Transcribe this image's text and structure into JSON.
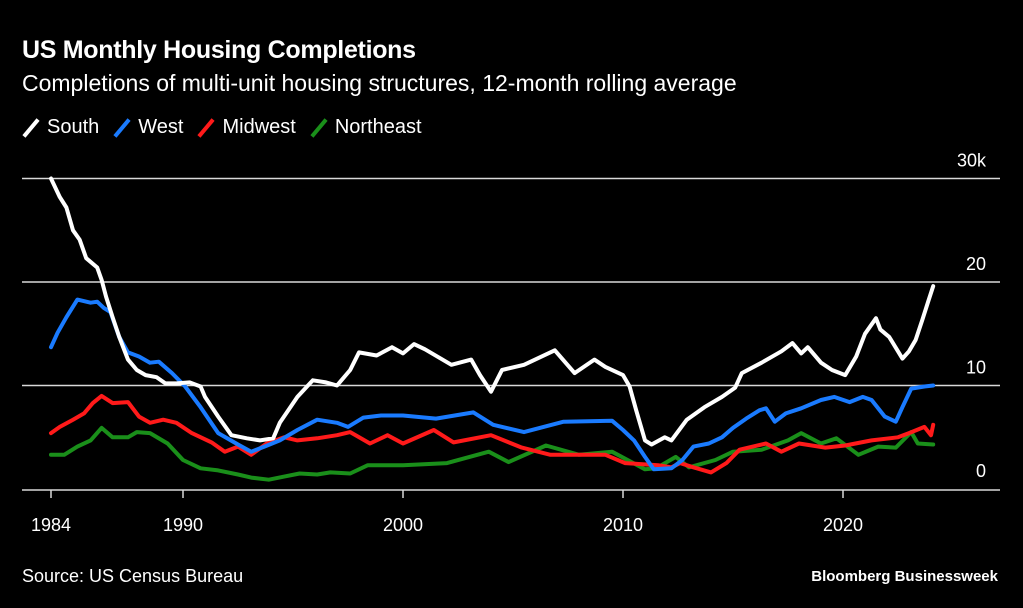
{
  "header": {
    "title": "US Monthly Housing Completions",
    "subtitle": "Completions of multi-unit housing structures, 12-month rolling average"
  },
  "footer": {
    "source": "Source: US Census Bureau",
    "brand": "Bloomberg Businessweek"
  },
  "chart_data": {
    "type": "line",
    "title": "US Monthly Housing Completions",
    "subtitle": "Completions of multi-unit housing structures, 12-month rolling average",
    "xlabel": "",
    "ylabel": "",
    "xlim": [
      1984,
      2024.2
    ],
    "ylim": [
      0,
      30
    ],
    "grid": true,
    "legend_position": "top-left",
    "x_ticks": [
      1984,
      1990,
      2000,
      2010,
      2020
    ],
    "x_tick_labels": [
      "1984",
      "1990",
      "2000",
      "2010",
      "2020"
    ],
    "y_ticks": [
      0,
      10,
      20,
      30
    ],
    "y_tick_labels": [
      "0",
      "10",
      "20",
      "30k"
    ],
    "series": [
      {
        "name": "South",
        "color": "#ffffff",
        "points": [
          [
            1984.0,
            30.0
          ],
          [
            1984.4,
            28.2
          ],
          [
            1984.7,
            27.2
          ],
          [
            1985.0,
            25.0
          ],
          [
            1985.3,
            24.1
          ],
          [
            1985.6,
            22.3
          ],
          [
            1986.1,
            21.4
          ],
          [
            1986.3,
            20.2
          ],
          [
            1986.5,
            18.6
          ],
          [
            1986.8,
            16.6
          ],
          [
            1987.1,
            14.7
          ],
          [
            1987.5,
            12.5
          ],
          [
            1987.9,
            11.5
          ],
          [
            1988.3,
            11.0
          ],
          [
            1988.8,
            10.8
          ],
          [
            1989.2,
            10.2
          ],
          [
            1989.7,
            10.2
          ],
          [
            1990.3,
            10.3
          ],
          [
            1990.8,
            9.9
          ],
          [
            1991.0,
            8.9
          ],
          [
            1991.6,
            7.0
          ],
          [
            1992.2,
            5.2
          ],
          [
            1992.9,
            4.9
          ],
          [
            1993.5,
            4.7
          ],
          [
            1994.1,
            4.9
          ],
          [
            1994.4,
            6.4
          ],
          [
            1995.2,
            8.9
          ],
          [
            1995.9,
            10.5
          ],
          [
            1996.5,
            10.3
          ],
          [
            1997.0,
            10.0
          ],
          [
            1997.6,
            11.5
          ],
          [
            1998.0,
            13.2
          ],
          [
            1998.8,
            12.9
          ],
          [
            1999.5,
            13.7
          ],
          [
            2000.0,
            13.1
          ],
          [
            2000.5,
            14.0
          ],
          [
            2001.0,
            13.5
          ],
          [
            2002.2,
            12.0
          ],
          [
            2003.1,
            12.5
          ],
          [
            2003.5,
            11.0
          ],
          [
            2004.0,
            9.4
          ],
          [
            2004.5,
            11.5
          ],
          [
            2005.5,
            12.0
          ],
          [
            2006.9,
            13.4
          ],
          [
            2007.8,
            11.2
          ],
          [
            2008.7,
            12.5
          ],
          [
            2009.2,
            11.8
          ],
          [
            2010.0,
            11.0
          ],
          [
            2010.3,
            9.9
          ],
          [
            2010.6,
            7.6
          ],
          [
            2011.0,
            4.7
          ],
          [
            2011.3,
            4.3
          ],
          [
            2011.9,
            5.0
          ],
          [
            2012.2,
            4.7
          ],
          [
            2012.9,
            6.7
          ],
          [
            2013.7,
            7.9
          ],
          [
            2014.5,
            8.9
          ],
          [
            2015.1,
            9.8
          ],
          [
            2015.4,
            11.2
          ],
          [
            2016.3,
            12.2
          ],
          [
            2017.2,
            13.3
          ],
          [
            2017.7,
            14.1
          ],
          [
            2018.1,
            13.1
          ],
          [
            2018.4,
            13.7
          ],
          [
            2019.0,
            12.2
          ],
          [
            2019.5,
            11.5
          ],
          [
            2020.1,
            11.0
          ],
          [
            2020.6,
            12.8
          ],
          [
            2021.0,
            15.0
          ],
          [
            2021.5,
            16.5
          ],
          [
            2021.7,
            15.4
          ],
          [
            2022.1,
            14.7
          ],
          [
            2022.7,
            12.6
          ],
          [
            2023.0,
            13.3
          ],
          [
            2023.3,
            14.4
          ],
          [
            2023.6,
            16.3
          ],
          [
            2023.9,
            18.3
          ],
          [
            2024.1,
            19.6
          ]
        ]
      },
      {
        "name": "West",
        "color": "#1a7bff",
        "points": [
          [
            1984.0,
            13.7
          ],
          [
            1984.3,
            15.1
          ],
          [
            1984.7,
            16.6
          ],
          [
            1985.2,
            18.3
          ],
          [
            1985.8,
            18.0
          ],
          [
            1986.1,
            18.1
          ],
          [
            1986.4,
            17.5
          ],
          [
            1986.7,
            17.1
          ],
          [
            1987.1,
            14.7
          ],
          [
            1987.5,
            13.2
          ],
          [
            1988.0,
            12.8
          ],
          [
            1988.5,
            12.2
          ],
          [
            1988.9,
            12.3
          ],
          [
            1989.5,
            11.2
          ],
          [
            1990.1,
            9.9
          ],
          [
            1990.8,
            7.9
          ],
          [
            1991.6,
            5.4
          ],
          [
            1992.5,
            4.3
          ],
          [
            1993.1,
            3.6
          ],
          [
            1993.7,
            4.1
          ],
          [
            1994.4,
            4.7
          ],
          [
            1995.2,
            5.7
          ],
          [
            1996.1,
            6.7
          ],
          [
            1997.0,
            6.4
          ],
          [
            1997.5,
            6.0
          ],
          [
            1998.2,
            6.9
          ],
          [
            1999.0,
            7.1
          ],
          [
            2000.0,
            7.1
          ],
          [
            2001.5,
            6.8
          ],
          [
            2003.2,
            7.4
          ],
          [
            2004.1,
            6.2
          ],
          [
            2005.5,
            5.5
          ],
          [
            2007.3,
            6.5
          ],
          [
            2009.5,
            6.6
          ],
          [
            2010.0,
            5.7
          ],
          [
            2010.5,
            4.7
          ],
          [
            2011.0,
            3.1
          ],
          [
            2011.4,
            1.9
          ],
          [
            2012.2,
            2.0
          ],
          [
            2012.7,
            2.8
          ],
          [
            2013.2,
            4.1
          ],
          [
            2013.9,
            4.4
          ],
          [
            2014.5,
            5.0
          ],
          [
            2015.0,
            5.9
          ],
          [
            2015.6,
            6.8
          ],
          [
            2016.2,
            7.6
          ],
          [
            2016.5,
            7.8
          ],
          [
            2016.9,
            6.5
          ],
          [
            2017.4,
            7.3
          ],
          [
            2018.1,
            7.8
          ],
          [
            2019.0,
            8.6
          ],
          [
            2019.6,
            8.9
          ],
          [
            2020.3,
            8.4
          ],
          [
            2020.9,
            8.9
          ],
          [
            2021.3,
            8.6
          ],
          [
            2021.9,
            7.0
          ],
          [
            2022.4,
            6.5
          ],
          [
            2022.7,
            7.9
          ],
          [
            2023.1,
            9.7
          ],
          [
            2023.7,
            9.9
          ],
          [
            2024.1,
            10.0
          ]
        ]
      },
      {
        "name": "Midwest",
        "color": "#ff1a1a",
        "points": [
          [
            1984.0,
            5.4
          ],
          [
            1984.4,
            6.0
          ],
          [
            1985.0,
            6.7
          ],
          [
            1985.5,
            7.3
          ],
          [
            1985.9,
            8.3
          ],
          [
            1986.3,
            9.0
          ],
          [
            1986.8,
            8.3
          ],
          [
            1987.5,
            8.4
          ],
          [
            1988.0,
            7.0
          ],
          [
            1988.5,
            6.4
          ],
          [
            1989.1,
            6.7
          ],
          [
            1989.7,
            6.4
          ],
          [
            1990.4,
            5.4
          ],
          [
            1991.3,
            4.5
          ],
          [
            1991.9,
            3.6
          ],
          [
            1992.5,
            4.1
          ],
          [
            1993.1,
            3.3
          ],
          [
            1993.8,
            4.4
          ],
          [
            1994.6,
            5.0
          ],
          [
            1995.2,
            4.7
          ],
          [
            1996.1,
            4.9
          ],
          [
            1997.0,
            5.2
          ],
          [
            1997.6,
            5.5
          ],
          [
            1998.5,
            4.4
          ],
          [
            1999.3,
            5.2
          ],
          [
            2000.0,
            4.4
          ],
          [
            2001.4,
            5.7
          ],
          [
            2002.3,
            4.5
          ],
          [
            2004.0,
            5.2
          ],
          [
            2005.4,
            4.0
          ],
          [
            2006.7,
            3.3
          ],
          [
            2009.2,
            3.3
          ],
          [
            2010.1,
            2.5
          ],
          [
            2011.6,
            2.3
          ],
          [
            2012.2,
            2.1
          ],
          [
            2012.6,
            2.5
          ],
          [
            2013.2,
            2.1
          ],
          [
            2014.0,
            1.6
          ],
          [
            2014.7,
            2.5
          ],
          [
            2015.3,
            3.8
          ],
          [
            2016.5,
            4.4
          ],
          [
            2017.2,
            3.6
          ],
          [
            2018.0,
            4.4
          ],
          [
            2019.2,
            4.0
          ],
          [
            2020.1,
            4.2
          ],
          [
            2021.3,
            4.7
          ],
          [
            2022.5,
            5.0
          ],
          [
            2023.0,
            5.4
          ],
          [
            2023.7,
            6.0
          ],
          [
            2024.0,
            5.2
          ],
          [
            2024.1,
            6.2
          ]
        ]
      },
      {
        "name": "Northeast",
        "color": "#1a8f1a",
        "points": [
          [
            1984.0,
            3.3
          ],
          [
            1984.6,
            3.3
          ],
          [
            1985.2,
            4.1
          ],
          [
            1985.8,
            4.7
          ],
          [
            1986.3,
            5.9
          ],
          [
            1986.8,
            5.0
          ],
          [
            1987.5,
            5.0
          ],
          [
            1987.9,
            5.5
          ],
          [
            1988.5,
            5.4
          ],
          [
            1989.3,
            4.4
          ],
          [
            1990.0,
            2.8
          ],
          [
            1990.8,
            2.0
          ],
          [
            1991.6,
            1.8
          ],
          [
            1992.5,
            1.4
          ],
          [
            1993.1,
            1.1
          ],
          [
            1993.9,
            0.9
          ],
          [
            1994.6,
            1.2
          ],
          [
            1995.3,
            1.5
          ],
          [
            1996.1,
            1.4
          ],
          [
            1996.7,
            1.6
          ],
          [
            1997.6,
            1.5
          ],
          [
            1998.4,
            2.3
          ],
          [
            1999.3,
            2.3
          ],
          [
            2000.0,
            2.3
          ],
          [
            2002.0,
            2.5
          ],
          [
            2003.9,
            3.6
          ],
          [
            2004.8,
            2.6
          ],
          [
            2006.5,
            4.2
          ],
          [
            2008.0,
            3.3
          ],
          [
            2009.5,
            3.6
          ],
          [
            2011.0,
            1.9
          ],
          [
            2011.5,
            2.0
          ],
          [
            2012.4,
            3.1
          ],
          [
            2013.0,
            2.1
          ],
          [
            2014.2,
            2.8
          ],
          [
            2015.0,
            3.6
          ],
          [
            2016.3,
            3.8
          ],
          [
            2017.5,
            4.7
          ],
          [
            2018.1,
            5.4
          ],
          [
            2019.0,
            4.4
          ],
          [
            2019.7,
            4.9
          ],
          [
            2020.7,
            3.3
          ],
          [
            2021.6,
            4.1
          ],
          [
            2022.4,
            4.0
          ],
          [
            2023.1,
            5.5
          ],
          [
            2023.4,
            4.4
          ],
          [
            2024.1,
            4.3
          ]
        ]
      }
    ]
  }
}
